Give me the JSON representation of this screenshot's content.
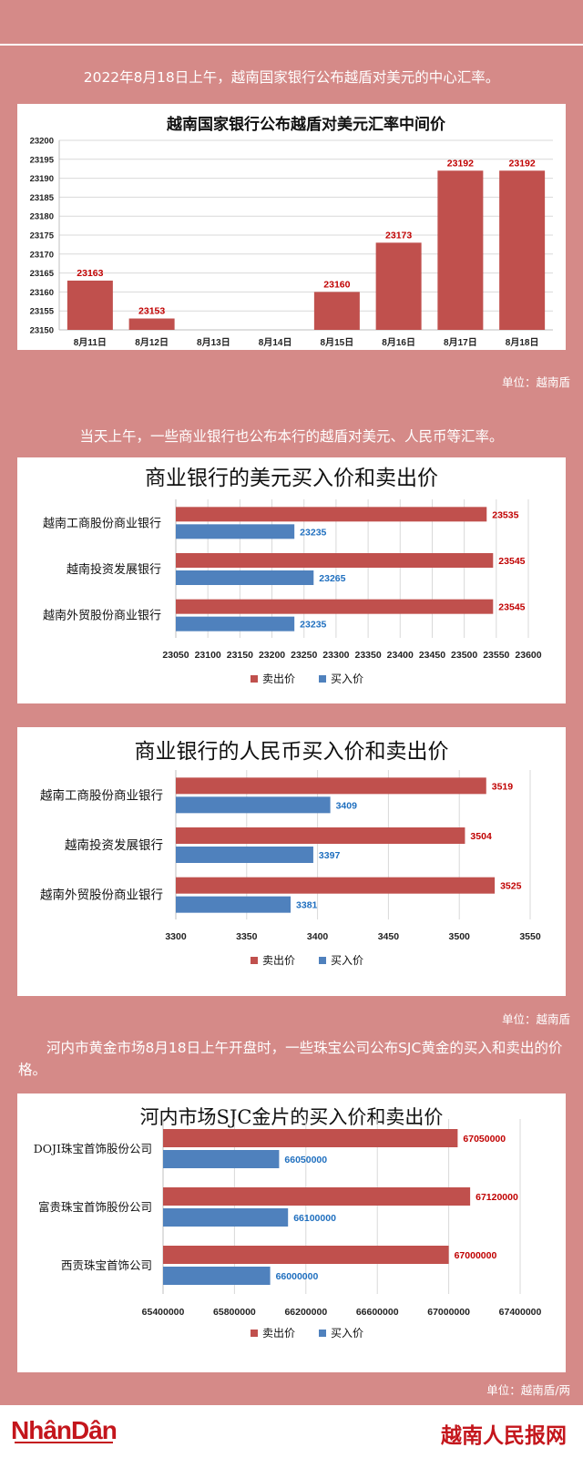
{
  "texts": {
    "p1": "2022年8月18日上午，越南国家银行公布越盾对美元的中心汇率。",
    "p2": "当天上午，一些商业银行也公布本行的越盾对美元、人民币等汇率。",
    "p3": "河内市黄金市场8月18日上午开盘时，一些珠宝公司公布SJC黄金的买入和卖出的价格。",
    "unit1": "单位：越南盾",
    "unit2": "单位：越南盾",
    "unit3": "单位：越南盾/两"
  },
  "footer": {
    "logo_left": "NhânDân",
    "logo_right": "越南人民报网"
  },
  "colors": {
    "sell": "#c0504d",
    "buy": "#4f81bd",
    "background": "#d58a88"
  },
  "chart_data": [
    {
      "type": "bar",
      "title": "越南国家银行公布越盾对美元汇率中间价",
      "categories": [
        "8月11日",
        "8月12日",
        "8月13日",
        "8月14日",
        "8月15日",
        "8月16日",
        "8月17日",
        "8月18日"
      ],
      "values": [
        23163,
        23153,
        null,
        null,
        23160,
        23173,
        23192,
        23192
      ],
      "data_labels": [
        "23163",
        "23153",
        "",
        "",
        "23160",
        "23173",
        "23192",
        "23192"
      ],
      "ylim": [
        23150,
        23200
      ],
      "yticks": [
        "23150",
        "23155",
        "23160",
        "23165",
        "23170",
        "23175",
        "23180",
        "23185",
        "23190",
        "23195",
        "23200"
      ],
      "grid": true,
      "color": "#c0504d"
    },
    {
      "type": "bar",
      "orientation": "horizontal",
      "title": "商业银行的美元买入价和卖出价",
      "categories": [
        "越南工商股份商业银行",
        "越南投资发展银行",
        "越南外贸股份商业银行"
      ],
      "series": [
        {
          "name": "卖出价",
          "values": [
            23535,
            23545,
            23545
          ],
          "labels": [
            "23535",
            "23545",
            "23545"
          ],
          "color": "#c0504d"
        },
        {
          "name": "买入价",
          "values": [
            23235,
            23265,
            23235
          ],
          "labels": [
            "23235",
            "23265",
            "23235"
          ],
          "color": "#4f81bd"
        }
      ],
      "xlim": [
        23050,
        23600
      ],
      "xticks": [
        "23050",
        "23100",
        "23150",
        "23200",
        "23250",
        "23300",
        "23350",
        "23400",
        "23450",
        "23500",
        "23550",
        "23600"
      ],
      "grid": true,
      "legend_position": "bottom"
    },
    {
      "type": "bar",
      "orientation": "horizontal",
      "title": "商业银行的人民币买入价和卖出价",
      "categories": [
        "越南工商股份商业银行",
        "越南投资发展银行",
        "越南外贸股份商业银行"
      ],
      "series": [
        {
          "name": "卖出价",
          "values": [
            3519,
            3504,
            3525
          ],
          "labels": [
            "3519",
            "3504",
            "3525"
          ],
          "color": "#c0504d"
        },
        {
          "name": "买入价",
          "values": [
            3409,
            3397,
            3381
          ],
          "labels": [
            "3409",
            "3397",
            "3381"
          ],
          "color": "#4f81bd"
        }
      ],
      "xlim": [
        3300,
        3550
      ],
      "xticks": [
        "3300",
        "3350",
        "3400",
        "3450",
        "3500",
        "3550"
      ],
      "grid": true,
      "legend_position": "bottom"
    },
    {
      "type": "bar",
      "orientation": "horizontal",
      "title": "河内市场SJC金片的买入价和卖出价",
      "categories": [
        "DOJI珠宝首饰股份公司",
        "富贵珠宝首饰股份公司",
        "西贡珠宝首饰公司"
      ],
      "series": [
        {
          "name": "卖出价",
          "values": [
            67050000,
            67120000,
            67000000
          ],
          "labels": [
            "67050000",
            "67120000",
            "67000000"
          ],
          "color": "#c0504d"
        },
        {
          "name": "买入价",
          "values": [
            66050000,
            66100000,
            66000000
          ],
          "labels": [
            "66050000",
            "66100000",
            "66000000"
          ],
          "color": "#4f81bd"
        }
      ],
      "xlim": [
        65400000,
        67400000
      ],
      "xticks": [
        "65400000",
        "65800000",
        "66200000",
        "66600000",
        "67000000",
        "67400000"
      ],
      "grid": true,
      "legend_position": "bottom"
    }
  ]
}
